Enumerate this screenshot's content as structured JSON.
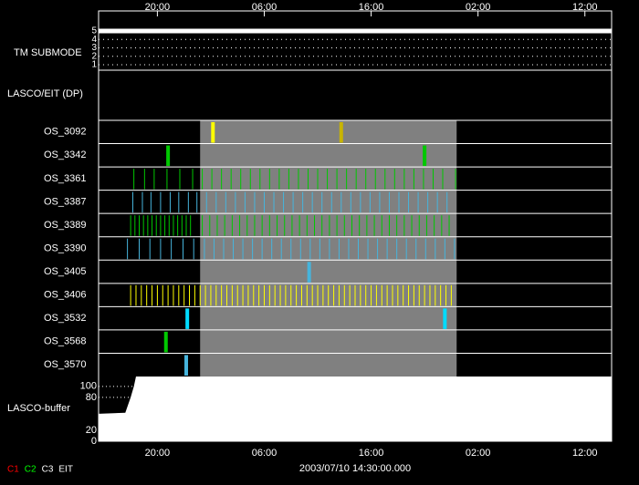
{
  "chart_data": {
    "type": "timeline",
    "date_label": "2003/07/10 14:30:00.000",
    "xlim": [
      14.5,
      62.5
    ],
    "xticks": [
      {
        "value": 20,
        "label": "20:00"
      },
      {
        "value": 30,
        "label": "06:00"
      },
      {
        "value": 40,
        "label": "16:00"
      },
      {
        "value": 50,
        "label": "02:00"
      },
      {
        "value": 60,
        "label": "12:00"
      }
    ],
    "shaded": [
      24,
      48
    ],
    "shade_color": "#808080",
    "submode": {
      "label": "TM SUBMODE",
      "ylim": [
        1,
        5
      ],
      "yticks": [
        1,
        2,
        3,
        4,
        5
      ],
      "x": [
        14.5,
        62.5
      ],
      "values": [
        5,
        5
      ]
    },
    "dp_label": "LASCO/EIT (DP)",
    "rows": [
      {
        "name": "OS_3092",
        "color": "#ffff00",
        "colors": [
          "#ffff00",
          "#c8b400"
        ],
        "times": [
          25.2,
          37.2
        ]
      },
      {
        "name": "OS_3342",
        "color": "#00c800",
        "times": [
          21.0,
          45.0
        ]
      },
      {
        "name": "OS_3361",
        "color": "#00c800",
        "times": [
          17.8,
          18.8,
          19.7,
          20.9,
          22.1,
          23.3,
          24.2,
          25.1,
          26.0,
          26.9,
          27.8,
          28.7,
          29.6,
          30.5,
          31.4,
          32.3,
          33.2,
          34.1,
          35.0,
          35.9,
          36.8,
          37.7,
          38.6,
          39.5,
          40.4,
          41.3,
          42.2,
          43.1,
          44.0,
          44.9,
          45.8,
          46.7,
          47.9
        ]
      },
      {
        "name": "OS_3387",
        "color": "#46b4dc",
        "times": [
          17.7,
          18.6,
          19.4,
          20.3,
          21.2,
          22.0,
          22.9,
          23.7,
          24.6,
          25.5,
          26.4,
          27.3,
          28.2,
          29.1,
          30.0,
          30.9,
          31.8,
          32.7,
          33.6,
          34.5,
          35.4,
          36.3,
          37.2,
          38.1,
          39.0,
          39.9,
          40.8,
          41.7,
          42.6,
          43.5,
          44.4,
          45.3,
          46.2,
          47.1
        ]
      },
      {
        "name": "OS_3389",
        "color": "#00c800",
        "times": [
          17.5,
          17.9,
          18.3,
          18.7,
          19.1,
          19.5,
          19.9,
          20.3,
          20.7,
          21.1,
          21.5,
          21.9,
          22.3,
          22.7,
          23.1,
          24.2,
          24.9,
          25.6,
          26.3,
          27.0,
          27.7,
          28.4,
          29.1,
          29.8,
          30.5,
          31.2,
          31.9,
          32.6,
          33.3,
          34.0,
          34.7,
          35.4,
          36.1,
          36.8,
          37.5,
          38.2,
          38.9,
          39.6,
          40.3,
          41.0,
          41.7,
          42.4,
          43.1,
          43.8,
          44.5,
          45.2,
          45.9,
          46.6,
          47.3
        ]
      },
      {
        "name": "OS_3390",
        "color": "#46b4dc",
        "times": [
          17.2,
          18.3,
          19.3,
          20.3,
          21.3,
          22.4,
          23.4,
          24.4,
          25.3,
          26.2,
          27.1,
          28.0,
          28.9,
          29.8,
          30.7,
          31.6,
          32.5,
          33.4,
          34.3,
          35.2,
          36.1,
          37.0,
          37.9,
          38.8,
          39.7,
          40.6,
          41.5,
          42.4,
          43.3,
          44.2,
          45.1,
          46.0,
          46.9,
          47.8
        ]
      },
      {
        "name": "OS_3405",
        "color": "#46b4dc",
        "times": [
          34.2
        ]
      },
      {
        "name": "OS_3406",
        "color": "#ffff00",
        "times": [
          17.5,
          18.0,
          18.5,
          19.0,
          19.5,
          20.0,
          20.5,
          21.0,
          21.5,
          22.0,
          22.5,
          23.0,
          23.5,
          24.0,
          24.5,
          25.0,
          25.5,
          26.0,
          26.5,
          27.0,
          27.5,
          28.0,
          28.5,
          29.0,
          29.5,
          30.0,
          30.5,
          31.0,
          31.5,
          32.0,
          32.5,
          33.0,
          33.5,
          34.0,
          34.5,
          35.0,
          35.5,
          36.0,
          36.5,
          37.0,
          37.5,
          38.0,
          38.5,
          39.0,
          39.5,
          40.0,
          40.5,
          41.0,
          41.5,
          42.0,
          42.5,
          43.0,
          43.5,
          44.0,
          44.5,
          45.0,
          45.5,
          46.0,
          46.5,
          47.0,
          47.5
        ]
      },
      {
        "name": "OS_3532",
        "color": "#00dcff",
        "times": [
          22.8,
          46.9
        ]
      },
      {
        "name": "OS_3568",
        "color": "#00c800",
        "times": [
          20.8
        ]
      },
      {
        "name": "OS_3570",
        "color": "#46b4dc",
        "times": [
          22.7
        ]
      }
    ],
    "buffer": {
      "label": "LASCO-buffer",
      "ylim": [
        0,
        118
      ],
      "yticks": [
        0,
        20,
        80,
        100
      ],
      "x": [
        14.5,
        17.0,
        17.5,
        17.8,
        18.0,
        62.5
      ],
      "values": [
        50,
        52,
        80,
        100,
        118,
        118
      ]
    },
    "legend": [
      {
        "name": "C1",
        "color": "#ff0000"
      },
      {
        "name": "C2",
        "color": "#00ff00"
      },
      {
        "name": "C3",
        "color": "#ffffff"
      },
      {
        "name": "EIT",
        "color": "#ffffff"
      }
    ]
  }
}
